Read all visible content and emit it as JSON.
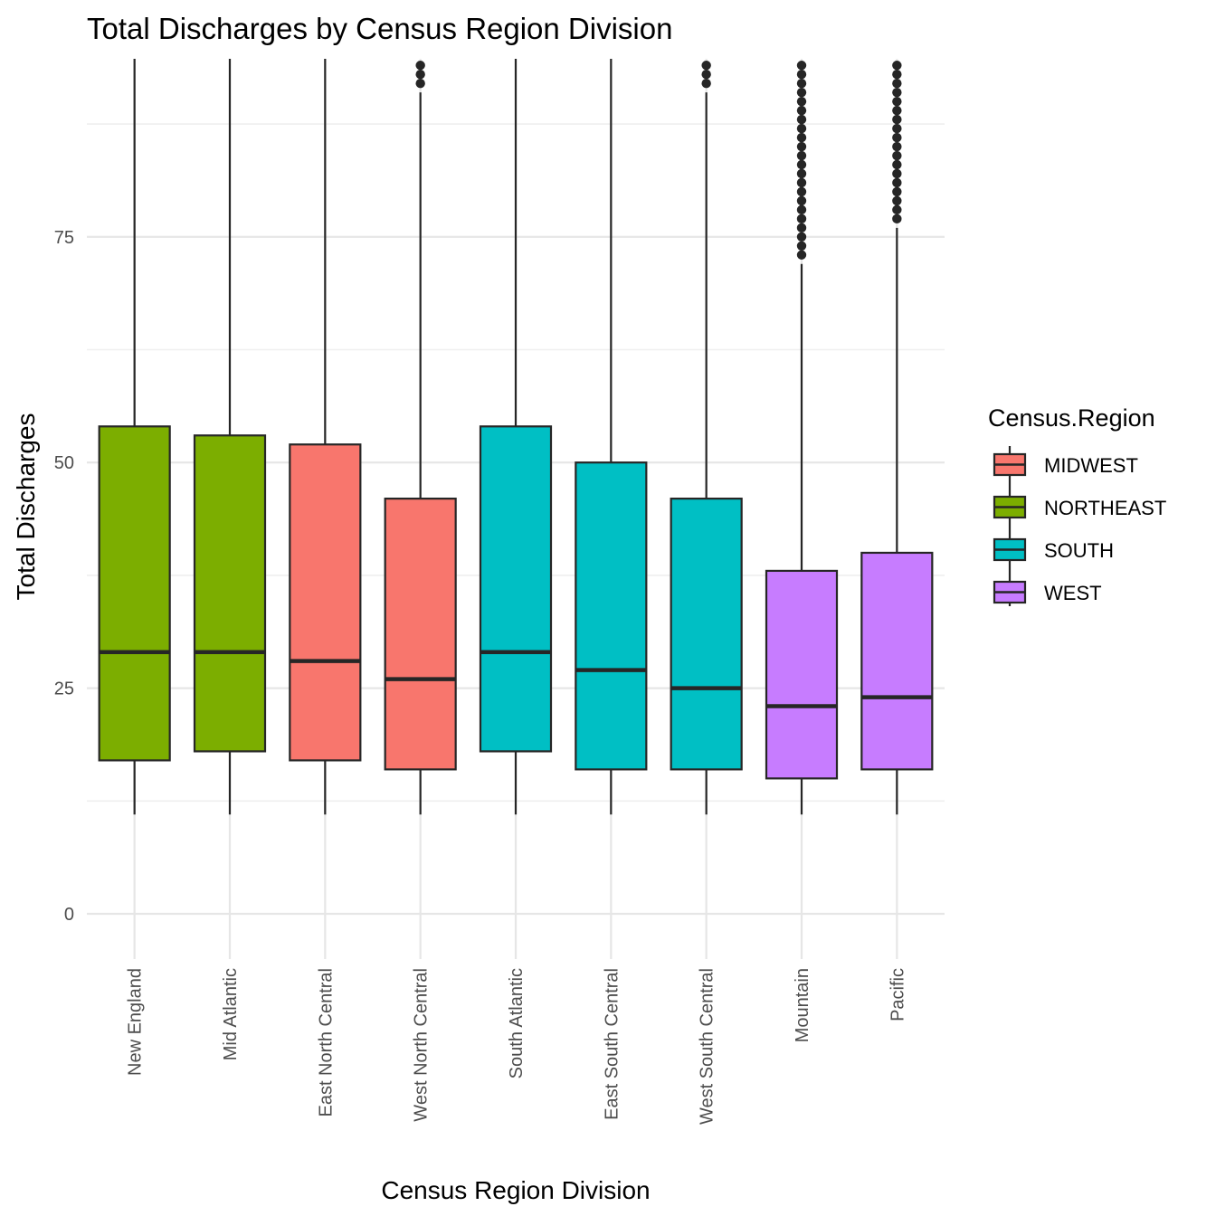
{
  "chart_data": {
    "type": "boxplot",
    "title": "Total Discharges by Census Region Division",
    "xlabel": "Census Region Division",
    "ylabel": "Total Discharges",
    "ylim": [
      -5,
      95
    ],
    "yticks": [
      0,
      25,
      50,
      75
    ],
    "grid": true,
    "legend": {
      "title": "Census.Region",
      "placement": "right",
      "entries": [
        {
          "name": "MIDWEST",
          "color": "#F8766D"
        },
        {
          "name": "NORTHEAST",
          "color": "#7CAE00"
        },
        {
          "name": "SOUTH",
          "color": "#00BFC4"
        },
        {
          "name": "WEST",
          "color": "#C77CFF"
        }
      ]
    },
    "categories": [
      "New England",
      "Mid Atlantic",
      "East North Central",
      "West North Central",
      "South Atlantic",
      "East South Central",
      "West South Central",
      "Mountain",
      "Pacific"
    ],
    "boxes": [
      {
        "category": "New England",
        "region": "NORTHEAST",
        "whisker_low": 11,
        "q1": 17,
        "median": 29,
        "q3": 54,
        "whisker_high": 95,
        "outliers": []
      },
      {
        "category": "Mid Atlantic",
        "region": "NORTHEAST",
        "whisker_low": 11,
        "q1": 18,
        "median": 29,
        "q3": 53,
        "whisker_high": 95,
        "outliers": []
      },
      {
        "category": "East North Central",
        "region": "MIDWEST",
        "whisker_low": 11,
        "q1": 17,
        "median": 28,
        "q3": 52,
        "whisker_high": 95,
        "outliers": []
      },
      {
        "category": "West North Central",
        "region": "MIDWEST",
        "whisker_low": 11,
        "q1": 16,
        "median": 26,
        "q3": 46,
        "whisker_high": 91,
        "outliers": [
          92,
          93,
          94,
          95
        ]
      },
      {
        "category": "South Atlantic",
        "region": "SOUTH",
        "whisker_low": 11,
        "q1": 18,
        "median": 29,
        "q3": 54,
        "whisker_high": 95,
        "outliers": []
      },
      {
        "category": "East South Central",
        "region": "SOUTH",
        "whisker_low": 11,
        "q1": 16,
        "median": 27,
        "q3": 50,
        "whisker_high": 95,
        "outliers": []
      },
      {
        "category": "West South Central",
        "region": "SOUTH",
        "whisker_low": 11,
        "q1": 16,
        "median": 25,
        "q3": 46,
        "whisker_high": 91,
        "outliers": [
          92,
          93,
          94,
          95
        ]
      },
      {
        "category": "Mountain",
        "region": "WEST",
        "whisker_low": 11,
        "q1": 15,
        "median": 23,
        "q3": 38,
        "whisker_high": 72,
        "outliers": [
          73,
          74,
          75,
          76,
          77,
          78,
          79,
          80,
          81,
          82,
          83,
          84,
          85,
          86,
          87,
          88,
          89,
          90,
          91,
          92,
          93,
          94,
          95
        ]
      },
      {
        "category": "Pacific",
        "region": "WEST",
        "whisker_low": 11,
        "q1": 16,
        "median": 24,
        "q3": 40,
        "whisker_high": 76,
        "outliers": [
          77,
          78,
          79,
          80,
          81,
          82,
          83,
          84,
          85,
          86,
          87,
          88,
          89,
          90,
          91,
          92,
          93,
          94,
          95
        ]
      }
    ]
  }
}
